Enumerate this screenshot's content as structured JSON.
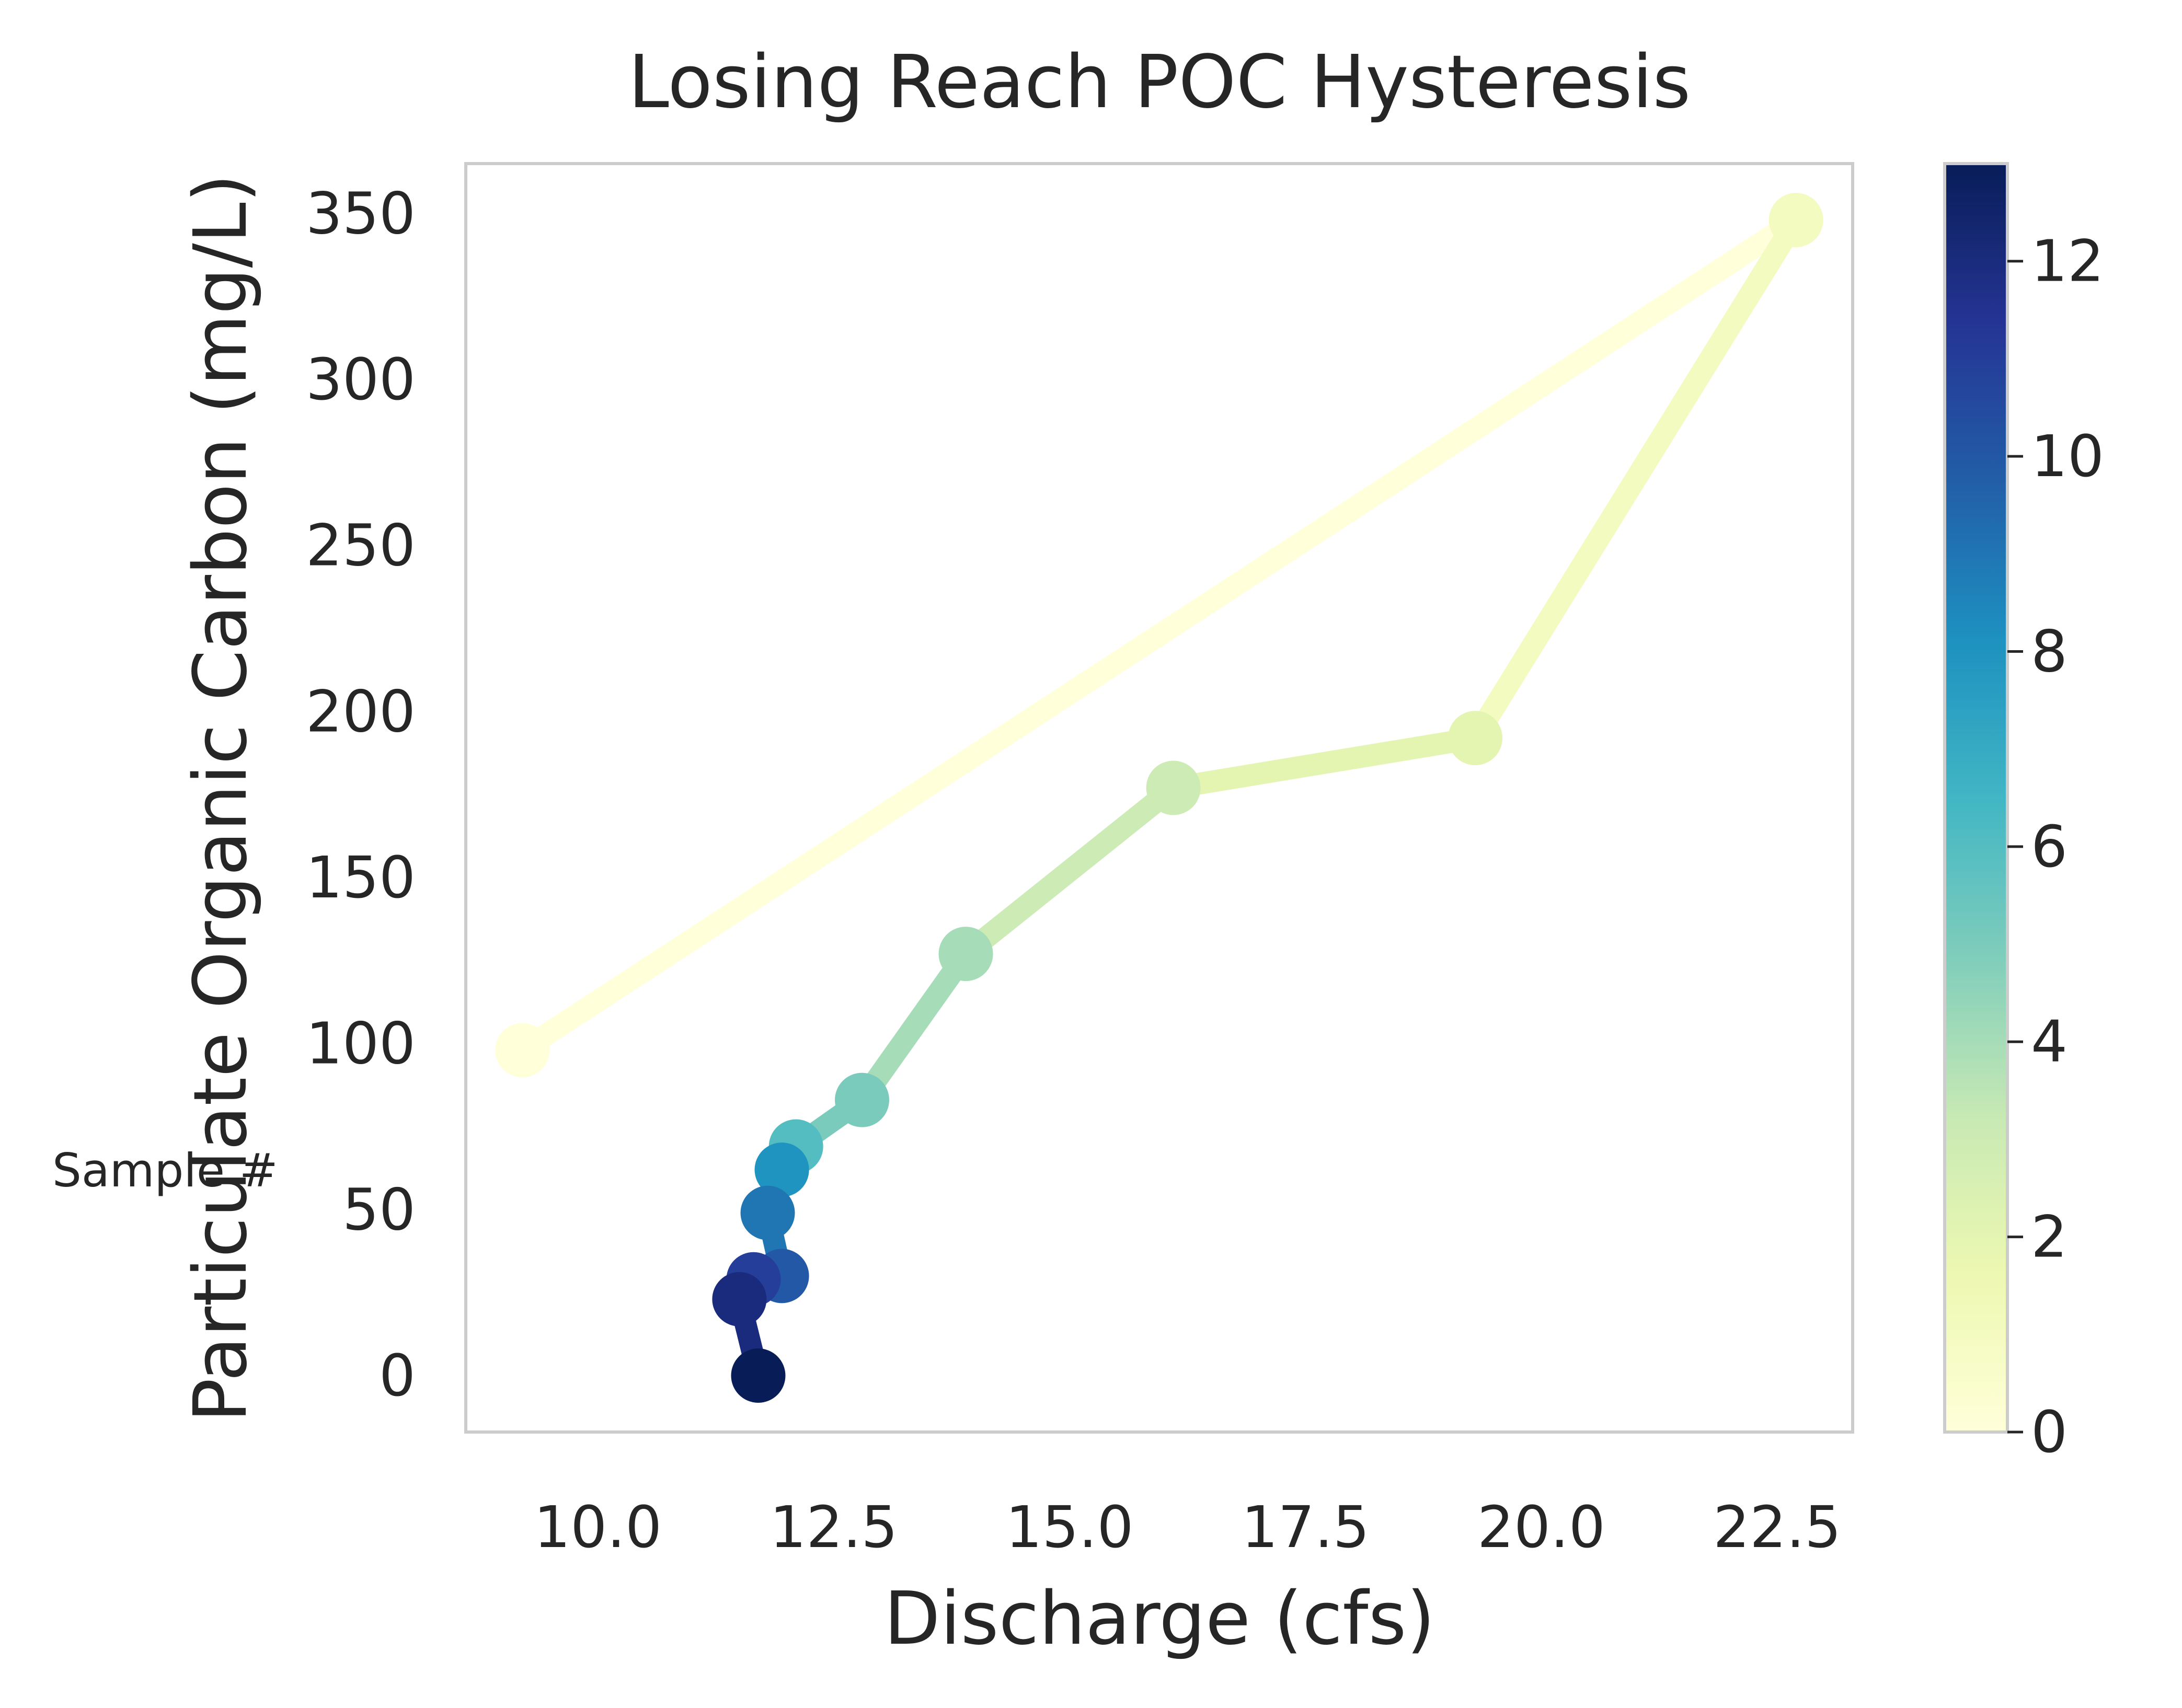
{
  "chart_data": {
    "type": "line",
    "title": "Losing Reach POC Hysteresis",
    "xlabel": "Discharge (cfs)",
    "ylabel": "Particulate Organic Carbon (mg/L)",
    "colorbar_label": "Sample #",
    "xlim": [
      8.6,
      23.3
    ],
    "ylim": [
      -17,
      365
    ],
    "xticks": [
      10.0,
      12.5,
      15.0,
      17.5,
      20.0,
      22.5
    ],
    "xtick_labels": [
      "10.0",
      "12.5",
      "15.0",
      "17.5",
      "20.0",
      "22.5"
    ],
    "yticks": [
      0,
      50,
      100,
      150,
      200,
      250,
      300,
      350
    ],
    "ytick_labels": [
      "0",
      "50",
      "100",
      "150",
      "200",
      "250",
      "300",
      "350"
    ],
    "colorbar_range": [
      0,
      13
    ],
    "colorbar_ticks": [
      0,
      2,
      4,
      6,
      8,
      10,
      12
    ],
    "colorbar_tick_labels": [
      "0",
      "2",
      "4",
      "6",
      "8",
      "10",
      "12"
    ],
    "colormap": "YlGnBu",
    "grid": false,
    "series": [
      {
        "sample": [
          0,
          1,
          2,
          3,
          4,
          5,
          6,
          7,
          8,
          9,
          10,
          11,
          12,
          13
        ],
        "x": [
          9.2,
          22.7,
          19.3,
          16.1,
          13.9,
          12.8,
          12.1,
          11.95,
          11.95,
          11.8,
          11.95,
          11.65,
          11.5,
          11.7
        ],
        "y": [
          98,
          348,
          192,
          177,
          127,
          83,
          69,
          62,
          62,
          49,
          30,
          29,
          23,
          0
        ]
      }
    ]
  }
}
